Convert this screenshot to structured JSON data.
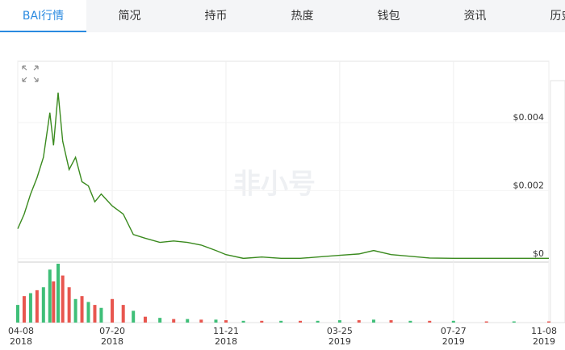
{
  "tabs": [
    "BAI行情",
    "简况",
    "持币",
    "热度",
    "钱包",
    "资讯",
    "历史"
  ],
  "watermark": "非小号",
  "chart_data": [
    {
      "type": "line",
      "xlim": [
        "2018-04-08",
        "2019-11-08"
      ],
      "xticks": [
        {
          "value": "2018-04-08",
          "label": "04-08\n2018"
        },
        {
          "value": "2018-07-20",
          "label": "07-20\n2018"
        },
        {
          "value": "2018-11-21",
          "label": "11-21\n2018"
        },
        {
          "value": "2019-03-25",
          "label": "03-25\n2019"
        },
        {
          "value": "2019-07-27",
          "label": "07-27\n2019"
        },
        {
          "value": "2019-11-08",
          "label": "11-08\n2019"
        }
      ],
      "ylim": [
        -0.0001,
        0.0058
      ],
      "yticks": [
        {
          "value": 0,
          "label": "$0"
        },
        {
          "value": 0.002,
          "label": "$0.002"
        },
        {
          "value": 0.004,
          "label": "$0.004"
        }
      ],
      "grid": true,
      "x": [
        "2018-04-08",
        "2018-04-15",
        "2018-04-22",
        "2018-04-29",
        "2018-05-06",
        "2018-05-13",
        "2018-05-17",
        "2018-05-22",
        "2018-05-27",
        "2018-06-03",
        "2018-06-10",
        "2018-06-17",
        "2018-06-24",
        "2018-07-01",
        "2018-07-08",
        "2018-07-20",
        "2018-08-01",
        "2018-08-12",
        "2018-08-25",
        "2018-09-10",
        "2018-09-25",
        "2018-10-10",
        "2018-10-25",
        "2018-11-10",
        "2018-11-21",
        "2018-12-10",
        "2018-12-30",
        "2019-01-20",
        "2019-02-10",
        "2019-03-01",
        "2019-03-25",
        "2019-04-15",
        "2019-05-01",
        "2019-05-20",
        "2019-06-10",
        "2019-07-01",
        "2019-07-27",
        "2019-09-01",
        "2019-10-01",
        "2019-11-08"
      ],
      "series": [
        {
          "color": "#3a8a1e",
          "values": [
            0.00088,
            0.00131,
            0.0019,
            0.00238,
            0.00298,
            0.00429,
            0.00333,
            0.00488,
            0.00345,
            0.00262,
            0.00298,
            0.00226,
            0.00214,
            0.00167,
            0.0019,
            0.00155,
            0.00131,
            0.00071,
            0.0006,
            0.00048,
            0.00052,
            0.00048,
            0.0004,
            0.00024,
            0.00012,
            1e-05,
            5e-05,
            1e-05,
            1e-05,
            5e-05,
            0.0001,
            0.00014,
            0.00024,
            0.00012,
            7e-05,
            2e-05,
            1e-05,
            1e-05,
            1e-05,
            1e-05
          ]
        }
      ]
    },
    {
      "type": "bar",
      "ylim": [
        0,
        100
      ],
      "x": [
        "2018-04-08",
        "2018-04-15",
        "2018-04-22",
        "2018-04-29",
        "2018-05-06",
        "2018-05-13",
        "2018-05-17",
        "2018-05-22",
        "2018-05-27",
        "2018-06-03",
        "2018-06-10",
        "2018-06-17",
        "2018-06-24",
        "2018-07-01",
        "2018-07-08",
        "2018-07-20",
        "2018-08-01",
        "2018-08-12",
        "2018-08-25",
        "2018-09-10",
        "2018-09-25",
        "2018-10-10",
        "2018-10-25",
        "2018-11-10",
        "2018-11-21",
        "2018-12-10",
        "2018-12-30",
        "2019-01-20",
        "2019-02-10",
        "2019-03-01",
        "2019-03-25",
        "2019-04-15",
        "2019-05-01",
        "2019-05-20",
        "2019-06-10",
        "2019-07-01",
        "2019-07-27",
        "2019-09-01",
        "2019-10-01",
        "2019-11-08"
      ],
      "values": [
        30,
        45,
        50,
        55,
        60,
        90,
        70,
        100,
        80,
        60,
        40,
        45,
        35,
        30,
        25,
        40,
        30,
        20,
        10,
        8,
        6,
        6,
        5,
        5,
        4,
        3,
        3,
        3,
        3,
        3,
        4,
        4,
        5,
        4,
        3,
        3,
        3,
        2,
        2,
        2
      ],
      "colors": [
        "#3fbf78",
        "#e8564f",
        "#3fbf78",
        "#e8564f",
        "#3fbf78",
        "#3fbf78",
        "#e8564f",
        "#3fbf78",
        "#e8564f",
        "#e8564f",
        "#3fbf78",
        "#e8564f",
        "#3fbf78",
        "#e8564f",
        "#3fbf78",
        "#e8564f",
        "#e8564f",
        "#3fbf78",
        "#e8564f",
        "#3fbf78",
        "#e8564f",
        "#3fbf78",
        "#e8564f",
        "#3fbf78",
        "#e8564f",
        "#3fbf78",
        "#e8564f",
        "#3fbf78",
        "#e8564f",
        "#3fbf78",
        "#3fbf78",
        "#e8564f",
        "#3fbf78",
        "#e8564f",
        "#3fbf78",
        "#e8564f",
        "#3fbf78",
        "#e8564f",
        "#3fbf78",
        "#e8564f"
      ]
    }
  ]
}
